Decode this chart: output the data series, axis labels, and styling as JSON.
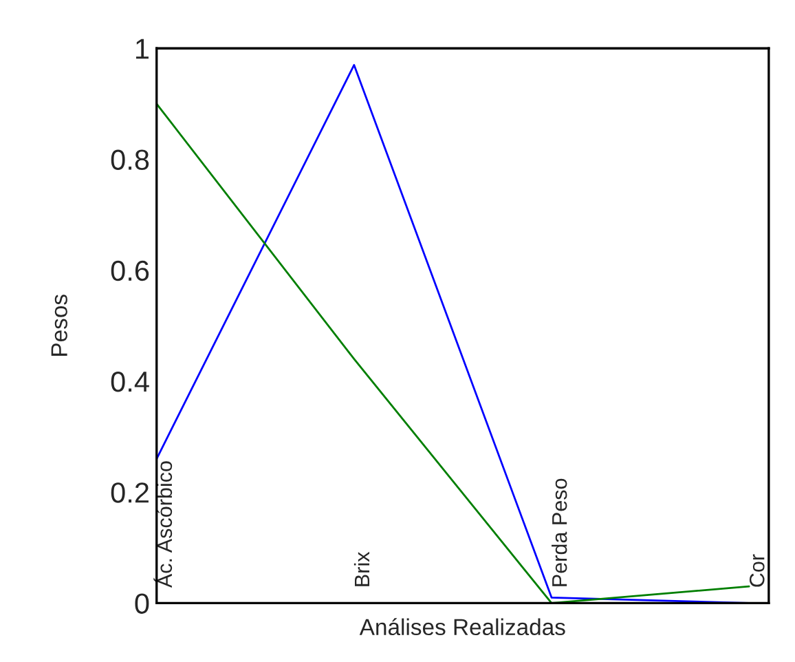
{
  "chart_data": {
    "type": "line",
    "xlabel": "Análises Realizadas",
    "ylabel": "Pesos",
    "categories": [
      "Ác. Ascórbico",
      "Brix",
      "Perda Peso",
      "Cor"
    ],
    "series": [
      {
        "color": "#0000ff",
        "values": [
          0.26,
          0.97,
          0.01,
          0.0
        ]
      },
      {
        "color": "#007f00",
        "values": [
          0.9,
          0.44,
          0.0,
          0.03
        ]
      }
    ],
    "ylim": [
      0,
      1
    ],
    "yticks": [
      0,
      0.2,
      0.4,
      0.6,
      0.8,
      1
    ],
    "grid": false,
    "marker": "none",
    "line_style": "solid"
  }
}
